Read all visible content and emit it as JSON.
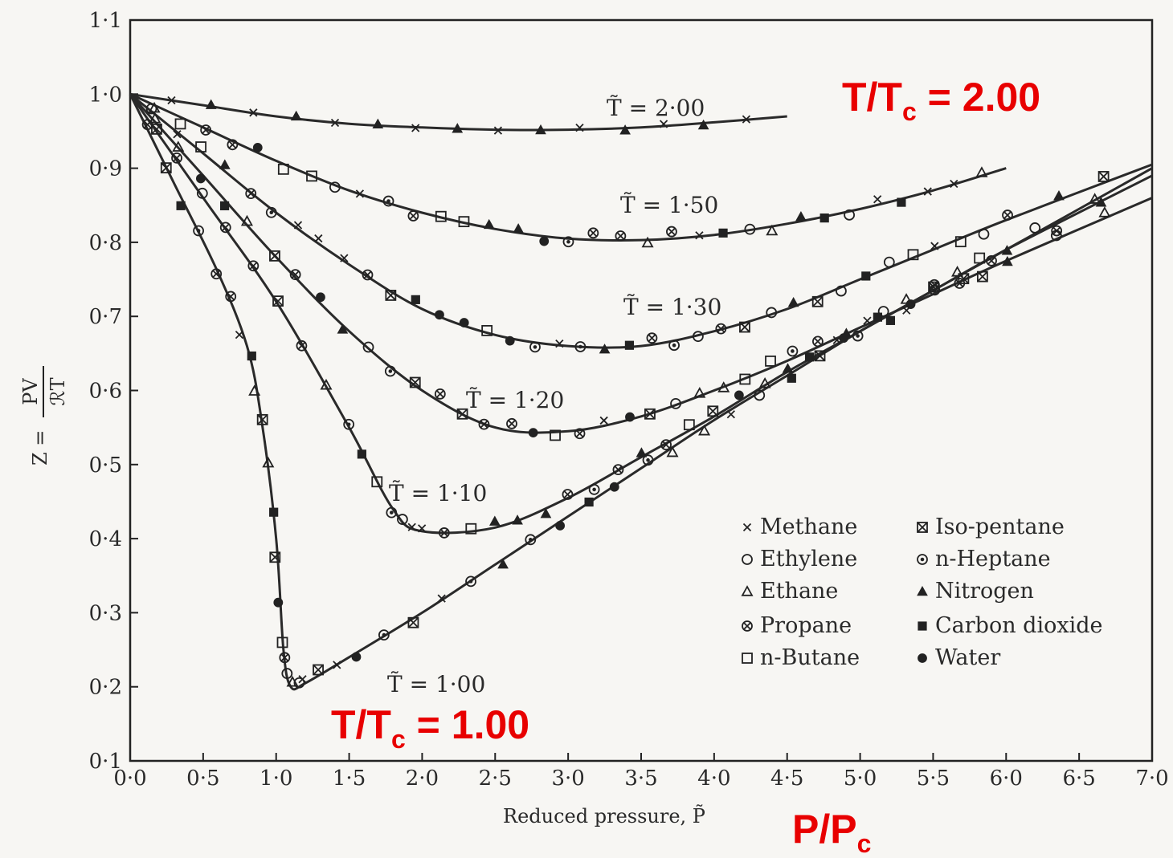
{
  "chart_data": {
    "type": "line",
    "title": "",
    "xlabel": "Reduced pressure, P̃",
    "ylabel_prefix": "Z = ",
    "ylabel_num": "PV",
    "ylabel_den": "ℛT",
    "xlim": [
      0,
      7
    ],
    "ylim": [
      0.1,
      1.1
    ],
    "x_ticks": [
      "0·0",
      "0·5",
      "1·0",
      "1·5",
      "2·0",
      "2·5",
      "3·0",
      "3·5",
      "4·0",
      "4·5",
      "5·0",
      "5·5",
      "6·0",
      "6·5",
      "7·0"
    ],
    "y_ticks": [
      "0·1",
      "0·2",
      "0·3",
      "0·4",
      "0·5",
      "0·6",
      "0·7",
      "0·8",
      "0·9",
      "1·0",
      "1·1"
    ],
    "grid": false,
    "curves": [
      {
        "label": "T̃ = 2·00",
        "x": [
          0,
          0.5,
          1.0,
          1.5,
          2.0,
          2.5,
          3.0,
          3.5,
          4.0,
          4.5
        ],
        "y": [
          1.0,
          0.985,
          0.97,
          0.96,
          0.955,
          0.952,
          0.952,
          0.955,
          0.962,
          0.97
        ]
      },
      {
        "label": "T̃ = 1·50",
        "x": [
          0,
          0.5,
          1.0,
          1.5,
          2.0,
          2.5,
          3.0,
          3.5,
          4.0,
          4.5,
          5.0,
          5.5,
          6.0
        ],
        "y": [
          1.0,
          0.955,
          0.91,
          0.87,
          0.84,
          0.818,
          0.805,
          0.803,
          0.81,
          0.825,
          0.845,
          0.87,
          0.9
        ]
      },
      {
        "label": "T̃ = 1·30",
        "x": [
          0,
          0.5,
          1.0,
          1.5,
          2.0,
          2.5,
          3.0,
          3.5,
          4.0,
          4.5,
          5.0,
          5.5,
          6.0,
          7.0
        ],
        "y": [
          1.0,
          0.92,
          0.84,
          0.77,
          0.71,
          0.675,
          0.66,
          0.66,
          0.68,
          0.71,
          0.75,
          0.79,
          0.83,
          0.905
        ]
      },
      {
        "label": "T̃ = 1·20",
        "x": [
          0,
          0.5,
          1.0,
          1.5,
          2.0,
          2.5,
          3.0,
          3.5,
          4.0,
          4.5,
          5.0,
          5.5,
          6.0,
          7.0
        ],
        "y": [
          1.0,
          0.89,
          0.78,
          0.68,
          0.6,
          0.55,
          0.545,
          0.565,
          0.6,
          0.64,
          0.685,
          0.73,
          0.775,
          0.86
        ]
      },
      {
        "label": "T̃ = 1·10",
        "x": [
          0,
          0.5,
          1.0,
          1.5,
          1.8,
          2.0,
          2.5,
          3.0,
          3.5,
          4.0,
          4.5,
          5.0,
          5.5,
          6.0,
          7.0
        ],
        "y": [
          1.0,
          0.86,
          0.72,
          0.55,
          0.44,
          0.41,
          0.415,
          0.455,
          0.51,
          0.565,
          0.625,
          0.68,
          0.735,
          0.79,
          0.89
        ]
      },
      {
        "label": "T̃ = 1·00",
        "x": [
          0,
          0.3,
          0.6,
          0.8,
          0.9,
          1.0,
          1.05,
          1.1,
          1.2,
          1.5,
          2.0,
          2.5,
          3.0,
          3.5,
          4.0,
          4.5,
          5.0,
          5.5,
          6.0,
          7.0
        ],
        "y": [
          1.0,
          0.88,
          0.76,
          0.66,
          0.56,
          0.4,
          0.25,
          0.2,
          0.205,
          0.24,
          0.3,
          0.365,
          0.43,
          0.495,
          0.56,
          0.62,
          0.68,
          0.735,
          0.79,
          0.9
        ]
      }
    ],
    "legend": {
      "position": "bottom-right",
      "entries": [
        "Methane",
        "Ethylene",
        "Ethane",
        "Propane",
        "n-Butane",
        "Iso-pentane",
        "n-Heptane",
        "Nitrogen",
        "Carbon dioxide",
        "Water"
      ],
      "marker_names": [
        "cross",
        "open-circle",
        "open-triangle",
        "circled-cross",
        "open-square",
        "crossed-square",
        "dotted-circle",
        "filled-triangle",
        "filled-square",
        "filled-circle"
      ]
    },
    "annotations": [
      "T/Tc = 2.00",
      "T/Tc = 1.00",
      "P/Pc"
    ]
  },
  "notes": {
    "top": {
      "main": "T/T",
      "sub": "c",
      "rest": " = 2.00"
    },
    "bottom": {
      "main": "T/T",
      "sub": "c",
      "rest": " = 1.00"
    },
    "axis": {
      "main": "P/P",
      "sub": "c"
    }
  },
  "colors": {
    "annotation": "#e80000",
    "ink": "#222222",
    "paper": "#f7f6f3"
  }
}
